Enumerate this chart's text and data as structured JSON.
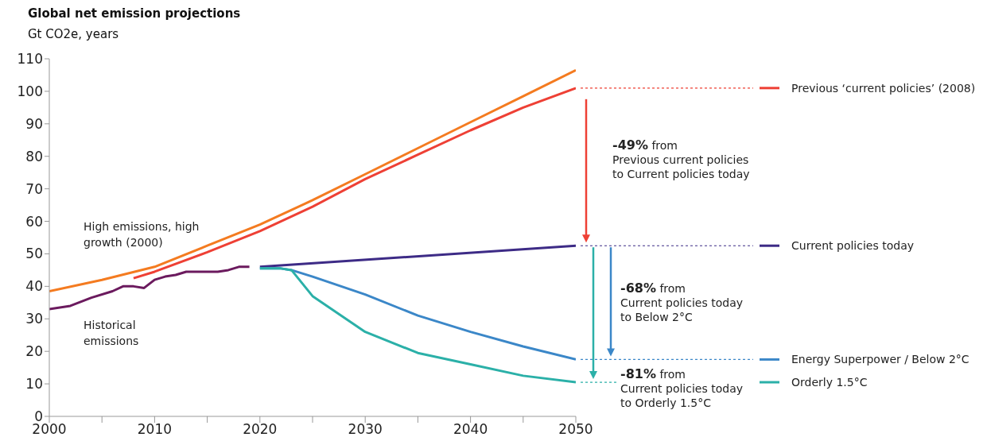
{
  "chart_data": {
    "type": "line",
    "title": "Global net emission projections",
    "subtitle": "Gt CO2e, years",
    "xlim": [
      2000,
      2050
    ],
    "xticks": [
      2000,
      {
        "value": 2005,
        "label": null
      },
      2010,
      {
        "value": 2015,
        "label": null
      },
      2020,
      {
        "value": 2025,
        "label": null
      },
      2030,
      {
        "value": 2035,
        "label": null
      },
      2040,
      {
        "value": 2045,
        "label": null
      },
      2050
    ],
    "ylim": [
      0,
      110
    ],
    "yticks": [
      0,
      10,
      20,
      30,
      40,
      50,
      60,
      70,
      80,
      90,
      100,
      110
    ],
    "grid": false,
    "legend": "right",
    "marker": "none",
    "line_style": "solid",
    "series": [
      {
        "color": "#f47b20",
        "x": [
          2000,
          2005,
          2010,
          2015,
          2020,
          2025,
          2030,
          2035,
          2040,
          2045,
          2050
        ],
        "values": [
          38.5,
          42,
          46,
          52.5,
          59,
          66.5,
          74.5,
          82.5,
          90.5,
          98.5,
          106.5
        ]
      },
      {
        "name": "Previous ‘current policies’ (2008)",
        "color": "#ee4035",
        "x": [
          2008,
          2010,
          2015,
          2020,
          2025,
          2030,
          2035,
          2040,
          2045,
          2050
        ],
        "values": [
          42.5,
          44.5,
          50.5,
          57,
          64.5,
          73,
          80.5,
          88,
          95,
          101
        ]
      },
      {
        "color": "#6b1a5e",
        "x": [
          2000,
          2002,
          2004,
          2006,
          2007,
          2008,
          2009,
          2010,
          2011,
          2012,
          2013,
          2014,
          2015,
          2016,
          2017,
          2018,
          2019
        ],
        "values": [
          33,
          34,
          36.5,
          38.5,
          40,
          40,
          39.5,
          42,
          43,
          43.5,
          44.5,
          44.5,
          44.5,
          44.5,
          45,
          46,
          46
        ]
      },
      {
        "name": "Current policies today",
        "color": "#3d2b86",
        "x": [
          2020,
          2050
        ],
        "values": [
          46,
          52.5
        ]
      },
      {
        "name": "Energy Superpower / Below 2°C",
        "color": "#3b87c8",
        "x": [
          2020,
          2022,
          2023,
          2025,
          2030,
          2035,
          2040,
          2045,
          2050
        ],
        "values": [
          45.5,
          45.5,
          45,
          43,
          37.5,
          31,
          26,
          21.5,
          17.5
        ]
      },
      {
        "name": "Orderly 1.5°C",
        "color": "#2bb0a8",
        "x": [
          2020,
          2022,
          2023,
          2025,
          2030,
          2035,
          2040,
          2045,
          2050
        ],
        "values": [
          45.5,
          45.5,
          45,
          37,
          26,
          19.5,
          16,
          12.5,
          10.5
        ]
      }
    ],
    "annotations": [
      "High emissions, high\ngrowth (2000)",
      "Historical\nemissions",
      "-49% from\nPrevious current policies\nto Current policies today",
      "-68% from\nCurrent policies today\nto Below 2°C",
      "-81% from\nCurrent policies today\nto Orderly 1.5°C"
    ]
  }
}
